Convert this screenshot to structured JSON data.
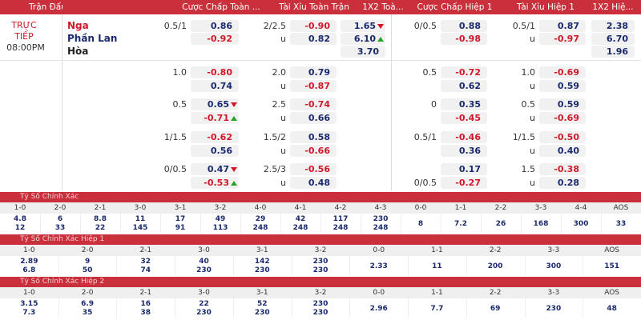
{
  "header": [
    "Trận Đấu",
    "Cược Chấp Toàn ...",
    "Tài Xỉu Toàn Trận",
    "1X2 Toà...",
    "Cược Chấp Hiệp 1",
    "Tài Xỉu Hiệp 1",
    "1X2 Hiệ..."
  ],
  "match": {
    "status": "TRỰC TIẾP",
    "time": "08:00PM",
    "teams": [
      "Nga",
      "Phần Lan",
      "Hòa"
    ]
  },
  "main": {
    "ft_1x2": [
      {
        "v": "1.65",
        "trend": "down"
      },
      {
        "v": "6.10",
        "trend": "up"
      },
      "3.70"
    ],
    "h1_1x2": [
      "2.38",
      "6.70",
      "1.96"
    ],
    "rows": [
      {
        "ft_hdp": {
          "home_line": "0.5/1",
          "home": "0.86",
          "away": "-0.92"
        },
        "ft_ou": {
          "line": "2/2.5",
          "over": "-0.90",
          "u": "u",
          "under": "0.82"
        },
        "h1_hdp": {
          "home_line": "0/0.5",
          "home": "0.88",
          "away": "-0.98"
        },
        "h1_ou": {
          "line": "0.5/1",
          "over": "0.87",
          "u": "u",
          "under": "-0.97"
        }
      },
      {
        "ft_hdp": {
          "home_line": "1.0",
          "home": "-0.80",
          "away": "0.74"
        },
        "ft_ou": {
          "line": "2.0",
          "over": "0.79",
          "u": "u",
          "under": "-0.87"
        },
        "h1_hdp": {
          "home_line": "0.5",
          "home": "-0.72",
          "away": "0.62"
        },
        "h1_ou": {
          "line": "1.0",
          "over": "-0.69",
          "u": "u",
          "under": "0.59"
        }
      },
      {
        "ft_hdp": {
          "home_line": "0.5",
          "home": {
            "v": "0.65",
            "trend": "down"
          },
          "away": {
            "v": "-0.71",
            "trend": "up"
          }
        },
        "ft_ou": {
          "line": "2.5",
          "over": "-0.74",
          "u": "u",
          "under": "0.66"
        },
        "h1_hdp": {
          "home_line": "0",
          "home": "0.35",
          "away": "-0.45"
        },
        "h1_ou": {
          "line": "0.5",
          "over": "0.59",
          "u": "u",
          "under": "-0.69"
        }
      },
      {
        "ft_hdp": {
          "home_line": "1/1.5",
          "home": "-0.62",
          "away": "0.56"
        },
        "ft_ou": {
          "line": "1.5/2",
          "over": "0.58",
          "u": "u",
          "under": "-0.66"
        },
        "h1_hdp": {
          "home_line": "0.5/1",
          "home": "-0.46",
          "away": "0.36"
        },
        "h1_ou": {
          "line": "1/1.5",
          "over": "-0.50",
          "u": "u",
          "under": "0.40"
        }
      },
      {
        "ft_hdp": {
          "home_line": "0/0.5",
          "home": {
            "v": "0.47",
            "trend": "down"
          },
          "away": {
            "v": "-0.53",
            "trend": "up"
          }
        },
        "ft_ou": {
          "line": "2.5/3",
          "over": "-0.56",
          "u": "u",
          "under": "0.48"
        },
        "h1_hdp": {
          "home": "0.17",
          "away_line": "0/0.5",
          "away": "-0.27"
        },
        "h1_ou": {
          "line": "1.5",
          "over": "-0.38",
          "u": "u",
          "under": "0.28"
        }
      }
    ]
  },
  "sections": [
    {
      "title": "Tỷ Số Chính Xác",
      "scores": [
        {
          "label": "1-0",
          "values": [
            "4.8",
            "12"
          ]
        },
        {
          "label": "2-0",
          "values": [
            "6",
            "33"
          ]
        },
        {
          "label": "2-1",
          "values": [
            "8.8",
            "22"
          ]
        },
        {
          "label": "3-0",
          "values": [
            "11",
            "145"
          ]
        },
        {
          "label": "3-1",
          "values": [
            "17",
            "91"
          ]
        },
        {
          "label": "3-2",
          "values": [
            "49",
            "113"
          ]
        },
        {
          "label": "4-0",
          "values": [
            "29",
            "248"
          ]
        },
        {
          "label": "4-1",
          "values": [
            "42",
            "248"
          ]
        },
        {
          "label": "4-2",
          "values": [
            "117",
            "248"
          ]
        },
        {
          "label": "4-3",
          "values": [
            "230",
            "248"
          ]
        },
        {
          "label": "0-0",
          "values": [
            "8"
          ]
        },
        {
          "label": "1-1",
          "values": [
            "7.2"
          ]
        },
        {
          "label": "2-2",
          "values": [
            "26"
          ]
        },
        {
          "label": "3-3",
          "values": [
            "168"
          ]
        },
        {
          "label": "4-4",
          "values": [
            "300"
          ]
        },
        {
          "label": "AOS",
          "values": [
            "33"
          ]
        }
      ]
    },
    {
      "title": "Tỷ Số Chính Xác Hiệp 1",
      "scores": [
        {
          "label": "1-0",
          "values": [
            "2.89",
            "6.8"
          ]
        },
        {
          "label": "2-0",
          "values": [
            "9",
            "50"
          ]
        },
        {
          "label": "2-1",
          "values": [
            "32",
            "74"
          ]
        },
        {
          "label": "3-0",
          "values": [
            "40",
            "230"
          ]
        },
        {
          "label": "3-1",
          "values": [
            "142",
            "230"
          ]
        },
        {
          "label": "3-2",
          "values": [
            "230",
            "230"
          ]
        },
        {
          "label": "0-0",
          "values": [
            "2.33"
          ]
        },
        {
          "label": "1-1",
          "values": [
            "11"
          ]
        },
        {
          "label": "2-2",
          "values": [
            "200"
          ]
        },
        {
          "label": "3-3",
          "values": [
            "300"
          ]
        },
        {
          "label": "AOS",
          "values": [
            "151"
          ]
        }
      ]
    },
    {
      "title": "Tỷ Số Chính Xác Hiệp 2",
      "scores": [
        {
          "label": "1-0",
          "values": [
            "3.15",
            "7.3"
          ]
        },
        {
          "label": "2-0",
          "values": [
            "6.9",
            "35"
          ]
        },
        {
          "label": "2-1",
          "values": [
            "16",
            "38"
          ]
        },
        {
          "label": "3-0",
          "values": [
            "22",
            "230"
          ]
        },
        {
          "label": "3-1",
          "values": [
            "52",
            "230"
          ]
        },
        {
          "label": "3-2",
          "values": [
            "230",
            "230"
          ]
        },
        {
          "label": "0-0",
          "values": [
            "2.96"
          ]
        },
        {
          "label": "1-1",
          "values": [
            "7.7"
          ]
        },
        {
          "label": "2-2",
          "values": [
            "69"
          ]
        },
        {
          "label": "3-3",
          "values": [
            "230"
          ]
        },
        {
          "label": "AOS",
          "values": [
            "48"
          ]
        }
      ]
    }
  ]
}
